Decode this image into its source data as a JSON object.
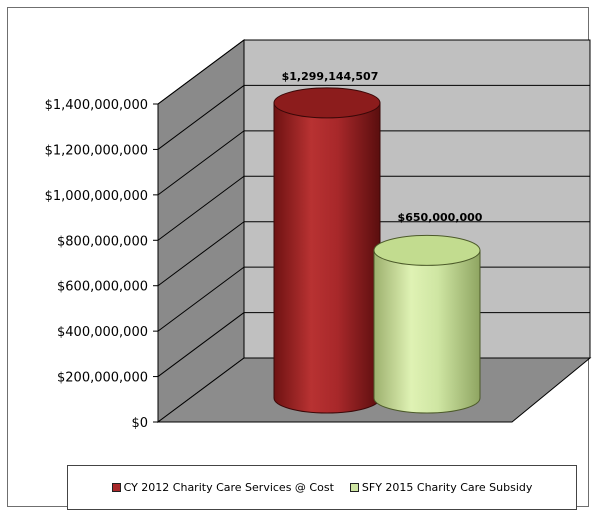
{
  "chart_data": {
    "type": "bar",
    "style": "3d-cylinder",
    "categories": [
      "CY 2012 Charity Care Services @ Cost",
      "SFY 2015 Charity Care Subsidy"
    ],
    "values": [
      1299144507,
      650000000
    ],
    "data_labels": [
      "$1,299,144,507",
      "$650,000,000"
    ],
    "colors": [
      "#a8282a",
      "#cfe6a3"
    ],
    "title": "",
    "xlabel": "",
    "ylabel": "",
    "ylim": [
      0,
      1400000000
    ],
    "y_ticks": [
      0,
      200000000,
      400000000,
      600000000,
      800000000,
      1000000000,
      1200000000,
      1400000000
    ],
    "y_tick_labels": [
      "$0",
      "$200,000,000",
      "$400,000,000",
      "$600,000,000",
      "$800,000,000",
      "$1,000,000,000",
      "$1,200,000,000",
      "$1,400,000,000"
    ],
    "grid": true,
    "legend_position": "bottom"
  },
  "legend": {
    "items": [
      {
        "label": "CY 2012 Charity Care Services @ Cost",
        "color": "#a8282a"
      },
      {
        "label": "SFY 2015 Charity Care Subsidy",
        "color": "#cfe6a3"
      }
    ]
  }
}
